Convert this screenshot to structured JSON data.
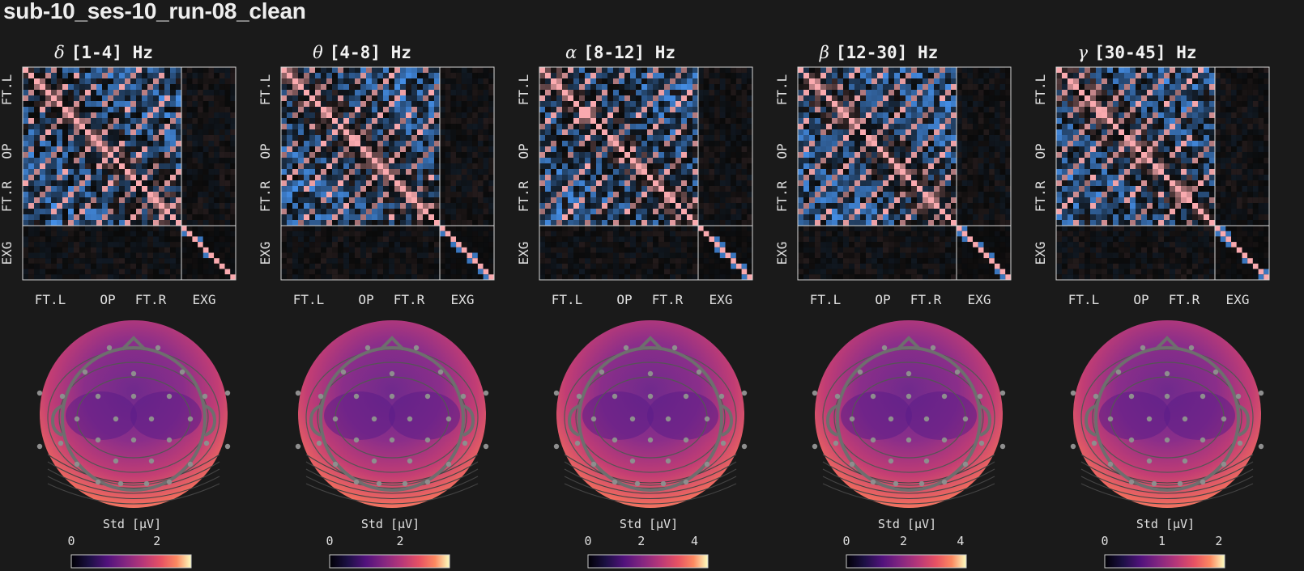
{
  "figure_title": "sub-10_ses-10_run-08_clean",
  "chart_data": [
    {
      "type": "heatmap",
      "title_symbol": "δ",
      "title_range": "[1-4] Hz",
      "xticklabels": [
        "FT.L",
        "OP",
        "FT.R",
        "EXG"
      ],
      "yticklabels": [
        "FT.L",
        "OP",
        "FT.R",
        "EXG"
      ],
      "topomap": {
        "colorbar_label": "Std [μV]",
        "colorbar_ticks": [
          "0",
          "2"
        ],
        "colorbar_range": [
          0,
          2.8
        ]
      }
    },
    {
      "type": "heatmap",
      "title_symbol": "θ",
      "title_range": "[4-8] Hz",
      "xticklabels": [
        "FT.L",
        "OP",
        "FT.R",
        "EXG"
      ],
      "yticklabels": [
        "FT.L",
        "OP",
        "FT.R",
        "EXG"
      ],
      "topomap": {
        "colorbar_label": "Std [μV]",
        "colorbar_ticks": [
          "0",
          "2"
        ],
        "colorbar_range": [
          0,
          3.4
        ]
      }
    },
    {
      "type": "heatmap",
      "title_symbol": "α",
      "title_range": "[8-12] Hz",
      "xticklabels": [
        "FT.L",
        "OP",
        "FT.R",
        "EXG"
      ],
      "yticklabels": [
        "FT.L",
        "OP",
        "FT.R",
        "EXG"
      ],
      "topomap": {
        "colorbar_label": "Std [μV]",
        "colorbar_ticks": [
          "0",
          "2",
          "4"
        ],
        "colorbar_range": [
          0,
          4.5
        ]
      }
    },
    {
      "type": "heatmap",
      "title_symbol": "β",
      "title_range": "[12-30] Hz",
      "xticklabels": [
        "FT.L",
        "OP",
        "FT.R",
        "EXG"
      ],
      "yticklabels": [
        "FT.L",
        "OP",
        "FT.R",
        "EXG"
      ],
      "topomap": {
        "colorbar_label": "Std [μV]",
        "colorbar_ticks": [
          "0",
          "2",
          "4"
        ],
        "colorbar_range": [
          0,
          4.2
        ]
      }
    },
    {
      "type": "heatmap",
      "title_symbol": "γ",
      "title_range": "[30-45] Hz",
      "xticklabels": [
        "FT.L",
        "OP",
        "FT.R",
        "EXG"
      ],
      "yticklabels": [
        "FT.L",
        "OP",
        "FT.R",
        "EXG"
      ],
      "topomap": {
        "colorbar_label": "Std [μV]",
        "colorbar_ticks": [
          "0",
          "1",
          "2"
        ],
        "colorbar_range": [
          0,
          2.1
        ]
      }
    }
  ]
}
